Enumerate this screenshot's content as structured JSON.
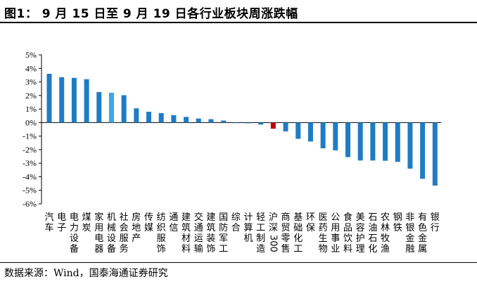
{
  "header": {
    "title": "图1：  9 月 15 日至 9 月 19 日各行业板块周涨跌幅"
  },
  "footer": {
    "source": "数据来源：Wind，国泰海通证券研究"
  },
  "colors": {
    "default_bar": "#1f7cc4",
    "highlight_bar": "#3aa7e6",
    "benchmark_bar": "#c00000"
  },
  "chart_data": {
    "type": "bar",
    "title": "",
    "xlabel": "",
    "ylabel": "",
    "ylim": [
      -6,
      5
    ],
    "yticks": [
      "5%",
      "4%",
      "3%",
      "2%",
      "1%",
      "0%",
      "-1%",
      "-2%",
      "-3%",
      "-4%",
      "-5%",
      "-6%"
    ],
    "grid": false,
    "legend": "none",
    "categories": [
      "汽车",
      "电子",
      "电力设备",
      "煤炭",
      "家用电器",
      "机械设备",
      "社会服务",
      "房地产",
      "传媒",
      "纺织服饰",
      "通信",
      "建筑材料",
      "交通运输",
      "建筑装饰",
      "国防军工",
      "综合",
      "计算机",
      "轻工制造",
      "沪深300",
      "商贸零售",
      "基础化工",
      "环保",
      "医药生物",
      "公用事业",
      "食品饮料",
      "美容护理",
      "石油石化",
      "农林牧渔",
      "钢铁",
      "非银金融",
      "有色金属",
      "银行"
    ],
    "values": [
      3.6,
      3.35,
      3.3,
      3.2,
      2.25,
      2.2,
      2.02,
      1.05,
      0.8,
      0.7,
      0.55,
      0.42,
      0.3,
      0.25,
      0.15,
      -0.02,
      -0.05,
      -0.15,
      -0.45,
      -0.65,
      -1.2,
      -1.4,
      -1.9,
      -2.05,
      -2.55,
      -2.8,
      -2.8,
      -2.82,
      -2.9,
      -3.4,
      -4.15,
      -4.65
    ],
    "bar_colors": [
      "default",
      "default",
      "default",
      "default",
      "default",
      "highlight",
      "default",
      "default",
      "default",
      "default",
      "default",
      "default",
      "default",
      "default",
      "default",
      "default",
      "default",
      "default",
      "benchmark",
      "default",
      "default",
      "default",
      "default",
      "default",
      "default",
      "default",
      "default",
      "default",
      "default",
      "default",
      "default",
      "default"
    ]
  }
}
